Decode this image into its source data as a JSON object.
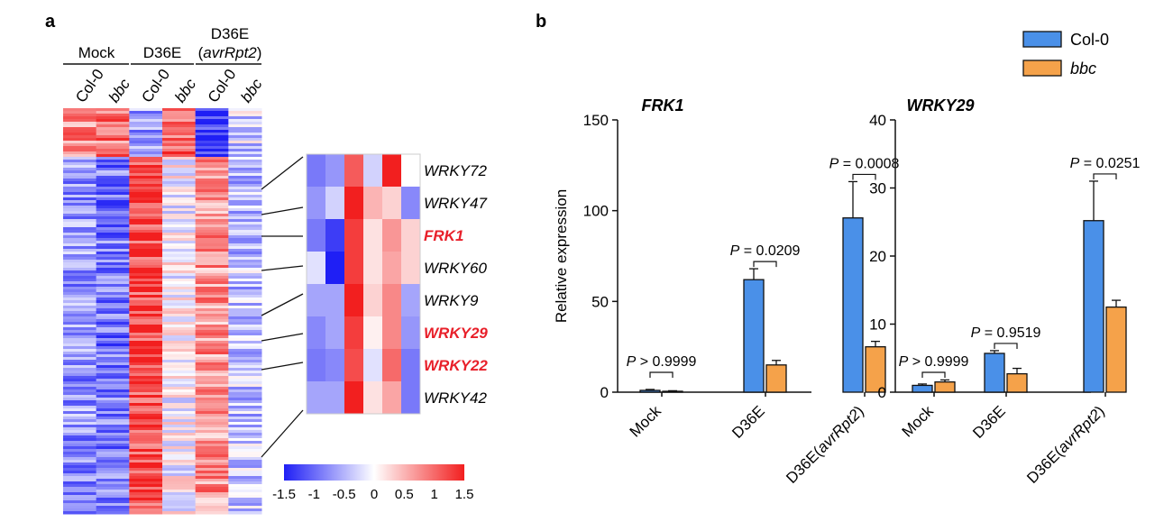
{
  "panels": {
    "a": "a",
    "b": "b"
  },
  "heatmap": {
    "groups": [
      "Mock",
      "D36E"
    ],
    "group3": {
      "line1": "D36E",
      "line2": "avrRpt2"
    },
    "columns": [
      "Col-0",
      "bbc",
      "Col-0",
      "bbc",
      "Col-0",
      "bbc"
    ],
    "column_italic": [
      false,
      true,
      false,
      true,
      false,
      true
    ],
    "color_scale": {
      "min_color": "#1f1ff5",
      "mid_color": "#ffffff",
      "max_color": "#f21f1f",
      "ticks": [
        "-1.5",
        "-1",
        "-0.5",
        "0",
        "0.5",
        "1",
        "1.5"
      ],
      "range": [
        -1.5,
        1.5
      ]
    },
    "zoom_genes": [
      {
        "name": "WRKY72",
        "highlight": false,
        "values": [
          -0.9,
          -0.7,
          1.1,
          -0.3,
          1.5,
          0.0
        ]
      },
      {
        "name": "WRKY47",
        "highlight": false,
        "values": [
          -0.7,
          -0.3,
          1.5,
          0.5,
          0.3,
          -0.8
        ]
      },
      {
        "name": "FRK1",
        "highlight": true,
        "values": [
          -0.9,
          -1.3,
          1.3,
          0.2,
          0.7,
          0.3
        ]
      },
      {
        "name": "WRKY60",
        "highlight": false,
        "values": [
          -0.2,
          -1.5,
          1.3,
          0.2,
          0.6,
          0.3
        ]
      },
      {
        "name": "WRKY9",
        "highlight": false,
        "values": [
          -0.6,
          -0.6,
          1.5,
          0.3,
          0.8,
          -0.6
        ]
      },
      {
        "name": "WRKY29",
        "highlight": true,
        "values": [
          -0.8,
          -0.6,
          1.3,
          0.1,
          0.8,
          -0.7
        ]
      },
      {
        "name": "WRKY22",
        "highlight": true,
        "values": [
          -0.9,
          -0.8,
          1.2,
          -0.2,
          1.0,
          -0.9
        ]
      },
      {
        "name": "WRKY42",
        "highlight": false,
        "values": [
          -0.6,
          -0.6,
          1.5,
          0.2,
          0.6,
          -0.9
        ]
      }
    ]
  },
  "chart_data": [
    {
      "type": "bar",
      "title": "FRK1",
      "ylabel": "Relative expression",
      "ylim": [
        0,
        150
      ],
      "yticks": [
        0,
        50,
        100,
        150
      ],
      "categories": [
        "Mock",
        "D36E",
        "D36E(avrRpt2)"
      ],
      "series": [
        {
          "name": "Col-0",
          "values": [
            1,
            62,
            96
          ],
          "errors": [
            0.5,
            6,
            20
          ]
        },
        {
          "name": "bbc",
          "values": [
            0.5,
            15,
            25
          ],
          "errors": [
            0.3,
            2.5,
            3
          ]
        }
      ],
      "pvalues": [
        {
          "p": "P",
          "rel": " > 0.9999"
        },
        {
          "p": "P",
          "rel": " = 0.0209"
        },
        {
          "p": "P",
          "rel": " = 0.0008"
        }
      ]
    },
    {
      "type": "bar",
      "title": "WRKY29",
      "ylabel": "",
      "ylim": [
        0,
        40
      ],
      "yticks": [
        0,
        10,
        20,
        30,
        40
      ],
      "categories": [
        "Mock",
        "D36E",
        "D36E(avrRpt2)"
      ],
      "series": [
        {
          "name": "Col-0",
          "values": [
            1.0,
            5.7,
            25.2
          ],
          "errors": [
            0.2,
            0.4,
            5.8
          ]
        },
        {
          "name": "bbc",
          "values": [
            1.5,
            2.7,
            12.5
          ],
          "errors": [
            0.3,
            0.8,
            1.0
          ]
        }
      ],
      "pvalues": [
        {
          "p": "P",
          "rel": " > 0.9999"
        },
        {
          "p": "P",
          "rel": " = 0.9519"
        },
        {
          "p": "P",
          "rel": " = 0.0251"
        }
      ]
    }
  ],
  "legend": {
    "position": "top-right",
    "items": [
      {
        "label": "Col-0",
        "color": "#4a90e8",
        "italic": false
      },
      {
        "label": "bbc",
        "color": "#f5a24a",
        "italic": true
      }
    ]
  }
}
